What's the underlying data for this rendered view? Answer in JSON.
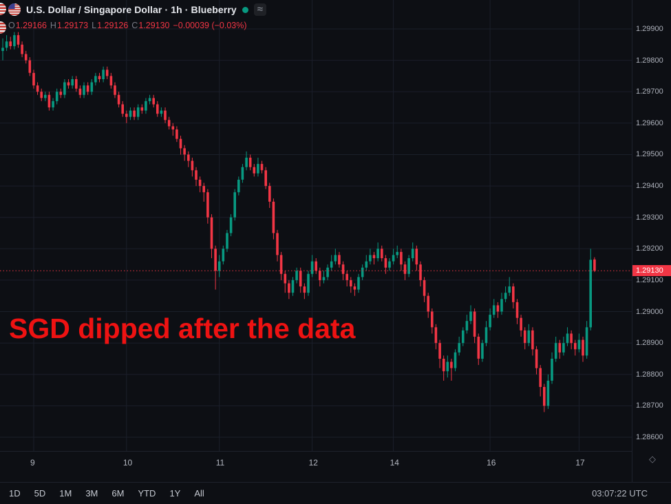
{
  "header": {
    "title": "U.S. Dollar / Singapore Dollar · 1h · Blueberry",
    "ohlc": {
      "o_label": "O",
      "o": "1.29166",
      "h_label": "H",
      "h": "1.29173",
      "l_label": "L",
      "l": "1.29126",
      "c_label": "C",
      "c": "1.29130",
      "change": "−0.00039 (−0.03%)"
    }
  },
  "annotation": {
    "text": "SGD dipped after the data",
    "color": "#ee1212"
  },
  "price_axis": {
    "labels": [
      "1.29900",
      "1.29800",
      "1.29700",
      "1.29600",
      "1.29500",
      "1.29400",
      "1.29300",
      "1.29200",
      "1.29100",
      "1.29000",
      "1.28900",
      "1.28800",
      "1.28700",
      "1.28600"
    ],
    "current": "1.29130"
  },
  "time_axis": {
    "ticks": [
      {
        "label": "9",
        "i": 8
      },
      {
        "label": "10",
        "i": 32
      },
      {
        "label": "11",
        "i": 56
      },
      {
        "label": "12",
        "i": 80
      },
      {
        "label": "14",
        "i": 101
      },
      {
        "label": "16",
        "i": 126
      },
      {
        "label": "17",
        "i": 149
      }
    ]
  },
  "toolbar": {
    "ranges": [
      "1D",
      "5D",
      "1M",
      "3M",
      "6M",
      "YTD",
      "1Y",
      "All"
    ],
    "clock": "03:07:22 UTC"
  },
  "colors": {
    "up": "#089981",
    "down": "#f23645",
    "bg": "#0d0f14",
    "grid": "#1b1f2a",
    "axis_text": "#aeb2bc",
    "badge_text": "#ffffff"
  },
  "chart_data": {
    "type": "candlestick",
    "title": "U.S. Dollar / Singapore Dollar",
    "symbol": "USD/SGD",
    "interval": "1h",
    "source": "Blueberry",
    "price_range": [
      1.286,
      1.299
    ],
    "current_price": 1.2913,
    "day_labels": [
      "9",
      "10",
      "11",
      "12",
      "14",
      "16",
      "17"
    ],
    "legend_note": "grid on, price scale right, time scale bottom, current price dotted line in down-color",
    "candles": [
      [
        1.2983,
        1.2987,
        1.298,
        1.2984
      ],
      [
        1.2984,
        1.2988,
        1.2983,
        1.2986
      ],
      [
        1.2986,
        1.29875,
        1.29835,
        1.29845
      ],
      [
        1.29845,
        1.2989,
        1.29835,
        1.2988
      ],
      [
        1.2988,
        1.2989,
        1.2984,
        1.2985
      ],
      [
        1.2985,
        1.2986,
        1.2981,
        1.2982
      ],
      [
        1.2982,
        1.2983,
        1.2979,
        1.298
      ],
      [
        1.298,
        1.2981,
        1.2975,
        1.2976
      ],
      [
        1.2976,
        1.2977,
        1.2971,
        1.2972
      ],
      [
        1.2972,
        1.2973,
        1.2969,
        1.297
      ],
      [
        1.297,
        1.2971,
        1.2967,
        1.2968
      ],
      [
        1.2968,
        1.297,
        1.2967,
        1.2969
      ],
      [
        1.2969,
        1.297,
        1.2964,
        1.2965
      ],
      [
        1.2965,
        1.2968,
        1.2964,
        1.2967
      ],
      [
        1.2967,
        1.2971,
        1.2966,
        1.297
      ],
      [
        1.297,
        1.2971,
        1.2968,
        1.2969
      ],
      [
        1.2969,
        1.2974,
        1.2968,
        1.2973
      ],
      [
        1.2973,
        1.2974,
        1.2971,
        1.2972
      ],
      [
        1.2972,
        1.2975,
        1.2971,
        1.2974
      ],
      [
        1.2974,
        1.2975,
        1.297,
        1.2971
      ],
      [
        1.2971,
        1.2972,
        1.2968,
        1.2969
      ],
      [
        1.2969,
        1.2973,
        1.2968,
        1.2972
      ],
      [
        1.2972,
        1.2973,
        1.2969,
        1.297
      ],
      [
        1.297,
        1.2974,
        1.2969,
        1.2973
      ],
      [
        1.2973,
        1.2976,
        1.2972,
        1.2975
      ],
      [
        1.2975,
        1.2976,
        1.2973,
        1.2974
      ],
      [
        1.2974,
        1.2978,
        1.2973,
        1.2977
      ],
      [
        1.2977,
        1.2978,
        1.2974,
        1.2975
      ],
      [
        1.2975,
        1.2976,
        1.2971,
        1.2972
      ],
      [
        1.2972,
        1.2973,
        1.2968,
        1.2969
      ],
      [
        1.2969,
        1.297,
        1.2965,
        1.2966
      ],
      [
        1.2966,
        1.2967,
        1.2962,
        1.2963
      ],
      [
        1.2963,
        1.2964,
        1.296,
        1.2962
      ],
      [
        1.2962,
        1.2965,
        1.2961,
        1.2964
      ],
      [
        1.2964,
        1.2965,
        1.2961,
        1.2962
      ],
      [
        1.2962,
        1.2966,
        1.2961,
        1.2965
      ],
      [
        1.2965,
        1.2966,
        1.2963,
        1.2964
      ],
      [
        1.2964,
        1.2968,
        1.2963,
        1.2967
      ],
      [
        1.2967,
        1.2969,
        1.2966,
        1.2968
      ],
      [
        1.2968,
        1.2969,
        1.2965,
        1.2966
      ],
      [
        1.2966,
        1.2967,
        1.2962,
        1.2963
      ],
      [
        1.2963,
        1.2965,
        1.2962,
        1.2964
      ],
      [
        1.2964,
        1.2965,
        1.296,
        1.2961
      ],
      [
        1.2961,
        1.2962,
        1.2958,
        1.2959
      ],
      [
        1.2959,
        1.296,
        1.2956,
        1.2958
      ],
      [
        1.2958,
        1.2959,
        1.2954,
        1.2955
      ],
      [
        1.2955,
        1.2956,
        1.295,
        1.2952
      ],
      [
        1.2952,
        1.2953,
        1.2948,
        1.295
      ],
      [
        1.295,
        1.2951,
        1.2946,
        1.2948
      ],
      [
        1.2948,
        1.2949,
        1.2943,
        1.2945
      ],
      [
        1.2945,
        1.2946,
        1.294,
        1.2942
      ],
      [
        1.2942,
        1.2943,
        1.2938,
        1.294
      ],
      [
        1.294,
        1.2941,
        1.2935,
        1.2938
      ],
      [
        1.2938,
        1.2939,
        1.2928,
        1.293
      ],
      [
        1.293,
        1.2931,
        1.2917,
        1.292
      ],
      [
        1.292,
        1.2921,
        1.2907,
        1.2913
      ],
      [
        1.2913,
        1.2918,
        1.2911,
        1.2916
      ],
      [
        1.2916,
        1.2921,
        1.2915,
        1.292
      ],
      [
        1.292,
        1.2926,
        1.2919,
        1.2925
      ],
      [
        1.2925,
        1.2931,
        1.2924,
        1.293
      ],
      [
        1.293,
        1.2939,
        1.2929,
        1.2938
      ],
      [
        1.2938,
        1.2943,
        1.2937,
        1.2942
      ],
      [
        1.2942,
        1.2947,
        1.2941,
        1.2946
      ],
      [
        1.2946,
        1.2951,
        1.2945,
        1.2949
      ],
      [
        1.2949,
        1.295,
        1.2945,
        1.2946
      ],
      [
        1.2946,
        1.2947,
        1.2943,
        1.2944
      ],
      [
        1.2944,
        1.2949,
        1.2943,
        1.2947
      ],
      [
        1.2947,
        1.2948,
        1.2944,
        1.2945
      ],
      [
        1.2945,
        1.2946,
        1.2939,
        1.294
      ],
      [
        1.294,
        1.2941,
        1.2933,
        1.2935
      ],
      [
        1.2935,
        1.2936,
        1.2923,
        1.2925
      ],
      [
        1.2925,
        1.2926,
        1.2916,
        1.2918
      ],
      [
        1.2918,
        1.2919,
        1.291,
        1.2912
      ],
      [
        1.2912,
        1.2913,
        1.2906,
        1.2909
      ],
      [
        1.2909,
        1.291,
        1.2904,
        1.2906
      ],
      [
        1.2906,
        1.2911,
        1.2905,
        1.291
      ],
      [
        1.291,
        1.2914,
        1.2909,
        1.2913
      ],
      [
        1.2913,
        1.2914,
        1.2906,
        1.2908
      ],
      [
        1.2908,
        1.2909,
        1.2904,
        1.2906
      ],
      [
        1.2906,
        1.2913,
        1.2905,
        1.2912
      ],
      [
        1.2912,
        1.2918,
        1.2911,
        1.2916
      ],
      [
        1.2916,
        1.2917,
        1.2912,
        1.2913
      ],
      [
        1.2913,
        1.2914,
        1.2908,
        1.291
      ],
      [
        1.291,
        1.2913,
        1.2909,
        1.2911
      ],
      [
        1.2911,
        1.2915,
        1.291,
        1.2914
      ],
      [
        1.2914,
        1.2918,
        1.2913,
        1.2916
      ],
      [
        1.2916,
        1.292,
        1.2915,
        1.2918
      ],
      [
        1.2918,
        1.2919,
        1.2914,
        1.2915
      ],
      [
        1.2915,
        1.2916,
        1.291,
        1.2912
      ],
      [
        1.2912,
        1.2913,
        1.2908,
        1.291
      ],
      [
        1.291,
        1.2911,
        1.2906,
        1.2908
      ],
      [
        1.2908,
        1.2909,
        1.2905,
        1.2907
      ],
      [
        1.2907,
        1.2912,
        1.2906,
        1.2911
      ],
      [
        1.2911,
        1.2915,
        1.291,
        1.2914
      ],
      [
        1.2914,
        1.2918,
        1.2913,
        1.2916
      ],
      [
        1.2916,
        1.292,
        1.2915,
        1.2918
      ],
      [
        1.2918,
        1.2919,
        1.2915,
        1.2917
      ],
      [
        1.2917,
        1.2922,
        1.2916,
        1.292
      ],
      [
        1.292,
        1.2921,
        1.2916,
        1.2917
      ],
      [
        1.2917,
        1.2918,
        1.2912,
        1.2914
      ],
      [
        1.2914,
        1.2917,
        1.2913,
        1.2916
      ],
      [
        1.2916,
        1.292,
        1.2915,
        1.2918
      ],
      [
        1.2918,
        1.2921,
        1.2917,
        1.2919
      ],
      [
        1.2919,
        1.292,
        1.2913,
        1.2915
      ],
      [
        1.2915,
        1.2916,
        1.291,
        1.2912
      ],
      [
        1.2912,
        1.2918,
        1.2911,
        1.2917
      ],
      [
        1.2917,
        1.2922,
        1.2916,
        1.292
      ],
      [
        1.292,
        1.2921,
        1.2913,
        1.2915
      ],
      [
        1.2915,
        1.2916,
        1.2908,
        1.291
      ],
      [
        1.291,
        1.2911,
        1.2903,
        1.2905
      ],
      [
        1.2905,
        1.2906,
        1.2898,
        1.29
      ],
      [
        1.29,
        1.2901,
        1.2893,
        1.2895
      ],
      [
        1.2895,
        1.2896,
        1.2888,
        1.289
      ],
      [
        1.289,
        1.2891,
        1.2882,
        1.2885
      ],
      [
        1.2885,
        1.2886,
        1.2878,
        1.2881
      ],
      [
        1.2881,
        1.2886,
        1.2879,
        1.2884
      ],
      [
        1.2884,
        1.2885,
        1.2878,
        1.2882
      ],
      [
        1.2882,
        1.2888,
        1.2881,
        1.2887
      ],
      [
        1.2887,
        1.2892,
        1.2886,
        1.289
      ],
      [
        1.289,
        1.2895,
        1.2889,
        1.2894
      ],
      [
        1.2894,
        1.2899,
        1.2893,
        1.2897
      ],
      [
        1.2897,
        1.2902,
        1.2896,
        1.29
      ],
      [
        1.29,
        1.2901,
        1.289,
        1.2892
      ],
      [
        1.2892,
        1.2893,
        1.2883,
        1.2885
      ],
      [
        1.2885,
        1.2891,
        1.2884,
        1.289
      ],
      [
        1.289,
        1.2897,
        1.2889,
        1.2895
      ],
      [
        1.2895,
        1.2901,
        1.2894,
        1.2899
      ],
      [
        1.2899,
        1.2904,
        1.2898,
        1.2902
      ],
      [
        1.2902,
        1.2903,
        1.2898,
        1.29
      ],
      [
        1.29,
        1.2906,
        1.2899,
        1.2904
      ],
      [
        1.2904,
        1.2908,
        1.2903,
        1.2906
      ],
      [
        1.2906,
        1.2911,
        1.2905,
        1.2908
      ],
      [
        1.2908,
        1.2909,
        1.2901,
        1.2903
      ],
      [
        1.2903,
        1.2904,
        1.2896,
        1.2898
      ],
      [
        1.2898,
        1.2899,
        1.2892,
        1.2894
      ],
      [
        1.2894,
        1.2895,
        1.2888,
        1.289
      ],
      [
        1.289,
        1.2896,
        1.2889,
        1.2894
      ],
      [
        1.2894,
        1.2895,
        1.2886,
        1.2888
      ],
      [
        1.2888,
        1.2889,
        1.288,
        1.2882
      ],
      [
        1.2882,
        1.2883,
        1.2873,
        1.2876
      ],
      [
        1.2876,
        1.2877,
        1.2868,
        1.287
      ],
      [
        1.287,
        1.288,
        1.2869,
        1.2878
      ],
      [
        1.2878,
        1.2887,
        1.2877,
        1.2885
      ],
      [
        1.2885,
        1.2892,
        1.2884,
        1.289
      ],
      [
        1.289,
        1.2891,
        1.2885,
        1.2887
      ],
      [
        1.2887,
        1.2892,
        1.2886,
        1.289
      ],
      [
        1.289,
        1.2895,
        1.2889,
        1.2893
      ],
      [
        1.2893,
        1.2894,
        1.2888,
        1.289
      ],
      [
        1.289,
        1.2891,
        1.2886,
        1.2888
      ],
      [
        1.2888,
        1.2893,
        1.2887,
        1.2891
      ],
      [
        1.2891,
        1.2892,
        1.2884,
        1.2886
      ],
      [
        1.2886,
        1.2897,
        1.2885,
        1.2895
      ],
      [
        1.2895,
        1.292,
        1.2894,
        1.29165
      ],
      [
        1.29166,
        1.29173,
        1.29126,
        1.2913
      ]
    ]
  }
}
